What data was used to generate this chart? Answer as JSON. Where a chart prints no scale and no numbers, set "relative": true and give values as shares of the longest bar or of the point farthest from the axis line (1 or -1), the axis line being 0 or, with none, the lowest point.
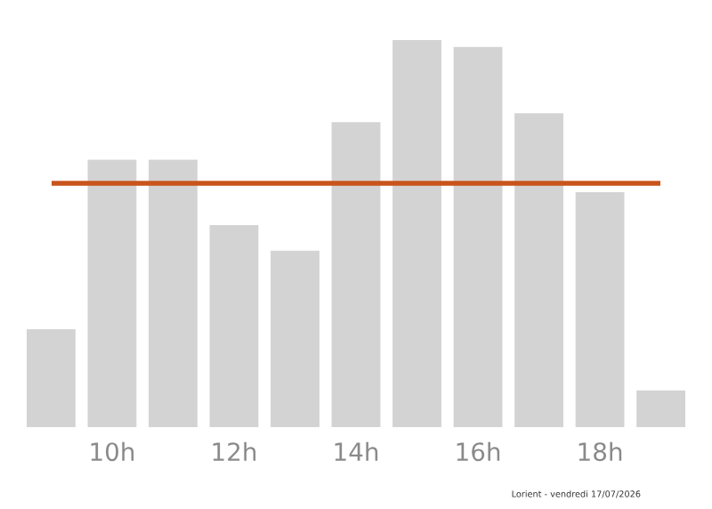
{
  "chart_data": {
    "type": "bar",
    "relative": true,
    "categories": [
      null,
      "10h",
      null,
      "12h",
      null,
      "14h",
      null,
      "16h",
      null,
      "18h",
      null
    ],
    "values": [
      0.253,
      0.691,
      0.691,
      0.522,
      0.456,
      0.788,
      1,
      0.982,
      0.811,
      0.607,
      0.095
    ],
    "color": "#d3d3d3",
    "ref_lines": [
      {
        "axis": "y",
        "value": 0.63,
        "color": "#c8541c"
      }
    ],
    "annotations": [
      "Lorient - vendredi 17/07/2026"
    ],
    "grid": false,
    "legend": false
  }
}
